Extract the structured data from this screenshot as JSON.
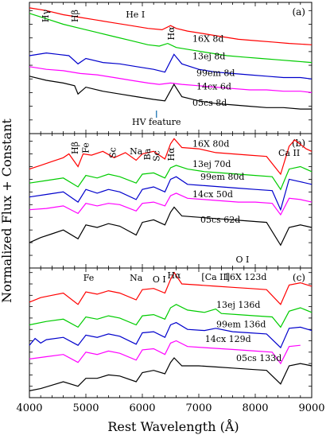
{
  "chart_data": {
    "type": "line",
    "xlabel": "Rest Wavelength (Å)",
    "ylabel": "Normalized Flux + Constant",
    "xlim": [
      4000,
      9000
    ],
    "xticks": [
      4000,
      5000,
      6000,
      7000,
      8000,
      9000
    ],
    "xtick_labels": [
      "4000",
      "5000",
      "6000",
      "7000",
      "8000",
      "9000"
    ],
    "panels": [
      {
        "id": "a",
        "label": "(a)",
        "series": [
          {
            "name": "16X 8d",
            "color": "#ff0000",
            "x": [
              4000,
              4300,
              4600,
              4900,
              5200,
              5500,
              5800,
              6100,
              6350,
              6500,
              6600,
              6800,
              7100,
              7400,
              7700,
              8000,
              8300,
              8600,
              9000
            ],
            "y": [
              4.6,
              4.5,
              4.35,
              4.25,
              4.15,
              4.05,
              3.95,
              3.85,
              3.8,
              3.95,
              3.85,
              3.75,
              3.65,
              3.55,
              3.45,
              3.4,
              3.35,
              3.3,
              3.25
            ]
          },
          {
            "name": "13ej 8d",
            "color": "#00cc00",
            "x": [
              4000,
              4300,
              4600,
              4900,
              5200,
              5500,
              5800,
              6100,
              6300,
              6450,
              6600,
              6900,
              7200,
              7500,
              7800,
              8100,
              8400,
              8700,
              9000
            ],
            "y": [
              4.4,
              4.2,
              4.0,
              3.85,
              3.7,
              3.55,
              3.4,
              3.25,
              3.2,
              3.3,
              3.15,
              3.05,
              2.95,
              2.85,
              2.8,
              2.75,
              2.7,
              2.65,
              2.6
            ]
          },
          {
            "name": "99em 8d",
            "color": "#0000cc",
            "x": [
              4000,
              4300,
              4500,
              4700,
              4860,
              5000,
              5300,
              5600,
              5900,
              6200,
              6400,
              6560,
              6700,
              7000,
              7300,
              7600,
              7900,
              8200,
              8500,
              8800,
              9000
            ],
            "y": [
              2.85,
              2.95,
              2.9,
              2.85,
              2.55,
              2.75,
              2.6,
              2.55,
              2.45,
              2.35,
              2.25,
              2.9,
              2.55,
              2.35,
              2.25,
              2.2,
              2.15,
              2.1,
              2.05,
              2.05,
              2.0
            ]
          },
          {
            "name": "14cx 6d",
            "color": "#ff00ff",
            "x": [
              4000,
              4300,
              4600,
              4900,
              5200,
              5500,
              5800,
              6100,
              6300,
              6500,
              6700,
              7000,
              7300,
              7600,
              7900,
              8200,
              8500,
              8800,
              9000
            ],
            "y": [
              2.45,
              2.35,
              2.3,
              2.2,
              2.15,
              2.05,
              1.95,
              1.85,
              1.8,
              1.85,
              1.8,
              1.75,
              1.7,
              1.65,
              1.6,
              1.6,
              1.55,
              1.55,
              1.5
            ]
          },
          {
            "name": "05cs 8d",
            "color": "#000000",
            "x": [
              4000,
              4300,
              4600,
              4800,
              4860,
              5000,
              5300,
              5600,
              5900,
              6200,
              6400,
              6560,
              6700,
              7000,
              7300,
              7600,
              7900,
              8200,
              8500,
              8800,
              9000
            ],
            "y": [
              2.1,
              1.95,
              1.85,
              1.75,
              1.45,
              1.7,
              1.55,
              1.45,
              1.35,
              1.25,
              1.2,
              1.8,
              1.35,
              1.2,
              1.1,
              1.05,
              1.0,
              0.95,
              0.95,
              0.9,
              0.9
            ]
          }
        ],
        "annotations": [
          {
            "text": "Hγ",
            "x": 4340
          },
          {
            "text": "Hβ",
            "x": 4861
          },
          {
            "text": "He I",
            "x": 5876
          },
          {
            "text": "Hα",
            "x": 6563
          },
          {
            "text": "HV feature",
            "x": 6250
          }
        ]
      },
      {
        "id": "b",
        "label": "(b)",
        "series": [
          {
            "name": "16X 80d",
            "color": "#ff0000",
            "x": [
              4000,
              4200,
              4400,
              4600,
              4700,
              4860,
              4950,
              5100,
              5300,
              5500,
              5700,
              5890,
              6000,
              6200,
              6400,
              6500,
              6563,
              6700,
              7000,
              7300,
              7600,
              7900,
              8200,
              8450,
              8600,
              8700,
              8900,
              9000
            ],
            "y": [
              3.9,
              4.05,
              4.2,
              4.35,
              4.5,
              4.0,
              4.5,
              4.45,
              4.6,
              4.35,
              4.55,
              4.25,
              4.5,
              4.6,
              4.3,
              4.9,
              5.1,
              4.75,
              4.7,
              4.55,
              4.5,
              4.45,
              4.4,
              3.7,
              4.8,
              5.05,
              4.7,
              4.6
            ]
          },
          {
            "name": "13ej 70d",
            "color": "#00cc00",
            "x": [
              4000,
              4300,
              4600,
              4860,
              5000,
              5200,
              5400,
              5600,
              5890,
              6000,
              6200,
              6400,
              6500,
              6600,
              6800,
              7100,
              7400,
              7700,
              8000,
              8300,
              8450,
              8600,
              8800,
              9000
            ],
            "y": [
              3.35,
              3.45,
              3.55,
              3.2,
              3.65,
              3.55,
              3.7,
              3.6,
              3.35,
              3.7,
              3.75,
              3.55,
              3.95,
              4.05,
              3.9,
              3.8,
              3.75,
              3.7,
              3.65,
              3.6,
              3.1,
              3.9,
              4.0,
              3.8
            ]
          },
          {
            "name": "99em 80d",
            "color": "#0000cc",
            "x": [
              4000,
              4300,
              4600,
              4860,
              5000,
              5200,
              5400,
              5600,
              5890,
              6000,
              6200,
              6400,
              6500,
              6600,
              6800,
              7100,
              7400,
              7700,
              8000,
              8300,
              8450,
              8600,
              8800,
              9000
            ],
            "y": [
              2.8,
              2.9,
              3.0,
              2.6,
              3.1,
              2.95,
              3.1,
              3.0,
              2.7,
              3.1,
              3.2,
              3.0,
              3.5,
              3.6,
              3.3,
              3.25,
              3.2,
              3.15,
              3.1,
              3.05,
              2.3,
              3.5,
              3.4,
              3.3
            ]
          },
          {
            "name": "14cx 50d",
            "color": "#ff00ff",
            "x": [
              4000,
              4300,
              4600,
              4860,
              5000,
              5200,
              5400,
              5600,
              5890,
              6000,
              6200,
              6400,
              6500,
              6600,
              6800,
              7100,
              7400,
              7700,
              8000,
              8300,
              8450,
              8600,
              8800,
              9000
            ],
            "y": [
              2.3,
              2.35,
              2.45,
              2.15,
              2.55,
              2.45,
              2.55,
              2.5,
              2.25,
              2.55,
              2.6,
              2.45,
              2.85,
              2.95,
              2.75,
              2.7,
              2.65,
              2.6,
              2.6,
              2.55,
              2.1,
              2.75,
              2.7,
              2.6
            ]
          },
          {
            "name": "05cs 62d",
            "color": "#000000",
            "x": [
              4000,
              4200,
              4400,
              4600,
              4860,
              5000,
              5200,
              5400,
              5600,
              5890,
              6000,
              6200,
              6400,
              6500,
              6563,
              6700,
              7000,
              7300,
              7600,
              7900,
              8200,
              8450,
              8600,
              8800,
              9000
            ],
            "y": [
              1.0,
              1.2,
              1.35,
              1.5,
              1.15,
              1.7,
              1.6,
              1.75,
              1.65,
              1.3,
              1.8,
              1.9,
              1.7,
              2.2,
              2.4,
              2.05,
              2.0,
              1.95,
              1.9,
              1.85,
              1.8,
              0.9,
              1.6,
              1.7,
              1.6
            ]
          }
        ],
        "annotations": [
          {
            "text": "Hβ",
            "x": 4861
          },
          {
            "text": "Fe",
            "x": 5050
          },
          {
            "text": "Sc",
            "x": 5530
          },
          {
            "text": "Na",
            "x": 5890
          },
          {
            "text": "Ba",
            "x": 6140
          },
          {
            "text": "Sc",
            "x": 6300
          },
          {
            "text": "Hα",
            "x": 6563
          },
          {
            "text": "Ca II",
            "x": 8600
          },
          {
            "text": "O I",
            "x": 7774
          }
        ]
      },
      {
        "id": "c",
        "label": "(c)",
        "series": [
          {
            "name": "16X 123d",
            "color": "#ff0000",
            "x": [
              4000,
              4200,
              4400,
              4600,
              4860,
              5000,
              5200,
              5400,
              5600,
              5890,
              6000,
              6200,
              6400,
              6500,
              6563,
              6700,
              7000,
              7300,
              7600,
              7900,
              8200,
              8450,
              8600,
              8800,
              9000
            ],
            "y": [
              4.2,
              4.4,
              4.5,
              4.6,
              4.1,
              4.65,
              4.55,
              4.7,
              4.6,
              4.3,
              4.75,
              4.8,
              4.6,
              5.2,
              5.5,
              5.0,
              4.95,
              4.9,
              4.85,
              4.8,
              4.75,
              4.1,
              4.95,
              5.05,
              4.9
            ]
          },
          {
            "name": "13ej 136d",
            "color": "#00cc00",
            "x": [
              4000,
              4300,
              4600,
              4860,
              5000,
              5200,
              5400,
              5600,
              5890,
              6000,
              6200,
              6400,
              6500,
              6600,
              6800,
              7100,
              7300,
              7400,
              7700,
              8000,
              8300,
              8450,
              8600,
              8800,
              9000
            ],
            "y": [
              3.2,
              3.35,
              3.45,
              3.1,
              3.55,
              3.45,
              3.6,
              3.5,
              3.2,
              3.6,
              3.65,
              3.45,
              3.95,
              4.1,
              3.85,
              3.75,
              3.9,
              3.7,
              3.65,
              3.6,
              3.55,
              3.1,
              3.8,
              3.95,
              3.75
            ]
          },
          {
            "name": "99em 136d",
            "color": "#0000cc",
            "x": [
              4000,
              4100,
              4200,
              4300,
              4600,
              4860,
              5000,
              5200,
              5400,
              5600,
              5890,
              6000,
              6200,
              6400,
              6500,
              6600,
              6800,
              7100,
              7300,
              7600,
              7900,
              8200,
              8450,
              8600,
              8800,
              9000
            ],
            "y": [
              2.3,
              2.6,
              2.4,
              2.55,
              2.65,
              2.3,
              2.75,
              2.65,
              2.8,
              2.7,
              2.35,
              2.85,
              2.9,
              2.65,
              3.2,
              3.3,
              3.0,
              2.95,
              3.05,
              2.9,
              2.85,
              2.8,
              2.2,
              3.05,
              3.1,
              2.95
            ]
          },
          {
            "name": "14cx 129d",
            "color": "#ff00ff",
            "x": [
              4000,
              4300,
              4600,
              4860,
              5000,
              5200,
              5400,
              5600,
              5890,
              6000,
              6200,
              6400,
              6500,
              6600,
              6800,
              7100,
              7400,
              7700,
              8000,
              8300,
              8450,
              8600,
              8800
            ],
            "y": [
              1.7,
              1.8,
              1.9,
              1.55,
              2.0,
              1.9,
              2.05,
              1.95,
              1.65,
              2.1,
              2.15,
              1.9,
              2.4,
              2.5,
              2.25,
              2.2,
              2.15,
              2.1,
              2.05,
              2.0,
              1.5,
              2.25,
              2.3
            ]
          },
          {
            "name": "05cs 133d",
            "color": "#000000",
            "x": [
              4000,
              4200,
              4400,
              4600,
              4860,
              5000,
              5200,
              5400,
              5600,
              5890,
              6000,
              6200,
              6400,
              6500,
              6563,
              6700,
              7000,
              7300,
              7600,
              7900,
              8200,
              8450,
              8600,
              8800,
              9000
            ],
            "y": [
              0.3,
              0.4,
              0.55,
              0.7,
              0.5,
              0.85,
              0.85,
              1.0,
              0.95,
              0.7,
              1.1,
              1.2,
              1.05,
              1.55,
              1.75,
              1.4,
              1.4,
              1.35,
              1.3,
              1.25,
              1.2,
              0.6,
              1.4,
              1.5,
              1.4
            ]
          }
        ],
        "annotations": [
          {
            "text": "Fe",
            "x": 5050
          },
          {
            "text": "Na",
            "x": 5890
          },
          {
            "text": "O I",
            "x": 6300
          },
          {
            "text": "Hα",
            "x": 6563
          },
          {
            "text": "[Ca II]",
            "x": 7300
          }
        ]
      }
    ]
  }
}
